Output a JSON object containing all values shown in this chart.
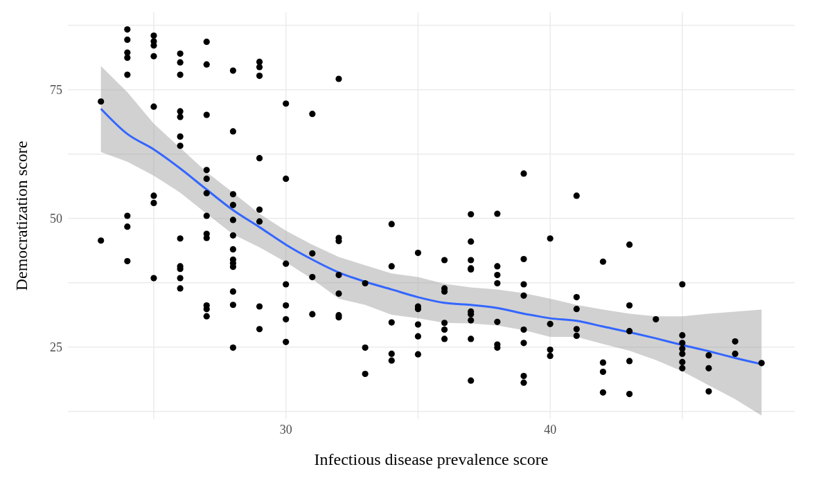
{
  "chart_data": {
    "type": "scatter",
    "xlabel": "Infectious disease prevalence score",
    "ylabel": "Democratization score",
    "xlim": [
      21.75,
      49.25
    ],
    "xticks": [
      {
        "value": 25,
        "label": null
      },
      30,
      {
        "value": 35,
        "label": null
      },
      40,
      {
        "value": 45,
        "label": null
      }
    ],
    "ylim": [
      11,
      90
    ],
    "yticks": [
      {
        "value": 12.5,
        "label": null
      },
      25,
      {
        "value": 37.5,
        "label": null
      },
      50,
      {
        "value": 62.5,
        "label": null
      },
      75,
      {
        "value": 87.5,
        "label": null
      }
    ],
    "grid": true,
    "series": [
      {
        "color": "#000000",
        "marker": "circle",
        "x": [
          23,
          23,
          24,
          24,
          24,
          24,
          24,
          24,
          24,
          24,
          25,
          25,
          25,
          25,
          25,
          25,
          25,
          25,
          26,
          26,
          26,
          26,
          26,
          26,
          26,
          26,
          26,
          26,
          26,
          26,
          27,
          27,
          27,
          27,
          27,
          27,
          27,
          27,
          27,
          27,
          27,
          27,
          28,
          28,
          28,
          28,
          28,
          28,
          28,
          28,
          28,
          28,
          28,
          28,
          28,
          29,
          29,
          29,
          29,
          29,
          29,
          29,
          29,
          30,
          30,
          30,
          30,
          30,
          30,
          30,
          31,
          31,
          31,
          31,
          32,
          32,
          32,
          32,
          32,
          32,
          32,
          33,
          33,
          33,
          34,
          34,
          34,
          34,
          34,
          35,
          35,
          35,
          35,
          35,
          35,
          36,
          36,
          36,
          36,
          36,
          36,
          37,
          37,
          37,
          37,
          37,
          37,
          37,
          37,
          37,
          37,
          38,
          38,
          38,
          38,
          38,
          38,
          38,
          39,
          39,
          39,
          39,
          39,
          39,
          39,
          39,
          40,
          40,
          40,
          40,
          41,
          41,
          41,
          41,
          41,
          42,
          42,
          42,
          42,
          43,
          43,
          43,
          43,
          43,
          44,
          45,
          45,
          45,
          45,
          45,
          45,
          45,
          46,
          46,
          46,
          47,
          47,
          48
        ],
        "values": [
          72.7,
          45.7,
          86.7,
          84.7,
          82.2,
          81.2,
          77.9,
          50.5,
          48.4,
          41.7,
          85.5,
          84.4,
          83.6,
          81.5,
          71.7,
          54.4,
          53.0,
          38.4,
          82.0,
          80.3,
          77.9,
          70.8,
          69.7,
          65.9,
          64.1,
          46.1,
          40.7,
          40.2,
          38.4,
          36.4,
          84.3,
          79.9,
          70.1,
          59.4,
          57.7,
          54.9,
          50.5,
          47.0,
          46.2,
          33.1,
          32.4,
          31.0,
          78.7,
          66.9,
          54.7,
          52.6,
          49.7,
          46.7,
          44.0,
          42.0,
          41.3,
          40.6,
          35.8,
          33.2,
          24.9,
          80.4,
          79.4,
          77.7,
          61.7,
          51.7,
          49.4,
          32.9,
          28.5,
          72.3,
          57.7,
          41.2,
          37.2,
          33.1,
          30.4,
          26.0,
          70.3,
          43.2,
          38.6,
          31.4,
          77.1,
          46.2,
          45.6,
          39.0,
          35.4,
          31.2,
          30.8,
          37.4,
          24.9,
          19.8,
          48.9,
          40.7,
          29.8,
          23.7,
          22.4,
          43.3,
          32.9,
          32.4,
          29.4,
          27.1,
          23.6,
          41.9,
          36.4,
          35.8,
          29.7,
          28.4,
          26.6,
          50.8,
          45.5,
          41.9,
          40.3,
          40.1,
          31.9,
          31.4,
          30.2,
          26.6,
          18.5,
          50.9,
          40.7,
          39.0,
          37.4,
          29.9,
          25.5,
          24.9,
          58.7,
          42.1,
          37.2,
          35.0,
          28.4,
          25.8,
          19.4,
          18.1,
          46.1,
          29.5,
          24.5,
          23.3,
          54.4,
          34.7,
          32.4,
          28.5,
          27.2,
          41.6,
          22.0,
          20.2,
          16.2,
          44.9,
          33.1,
          28.1,
          22.3,
          15.9,
          30.4,
          37.2,
          27.3,
          25.8,
          24.7,
          23.7,
          22.1,
          20.9,
          23.4,
          20.9,
          16.4,
          26.1,
          23.7,
          21.9
        ]
      },
      {
        "type": "line",
        "color": "#3366ff",
        "x": [
          23,
          24,
          25,
          26,
          27,
          28,
          29,
          30,
          31,
          32,
          33,
          34,
          35,
          36,
          37,
          38,
          39,
          40,
          41,
          42,
          43,
          44,
          45,
          46,
          47,
          48
        ],
        "values": [
          71.3,
          66.4,
          63.4,
          59.7,
          55.6,
          51.6,
          48.3,
          44.9,
          42.0,
          39.5,
          37.7,
          36.2,
          34.7,
          33.6,
          33.2,
          32.6,
          31.5,
          30.6,
          30.1,
          29.0,
          27.9,
          26.7,
          25.4,
          24.2,
          22.9,
          21.7
        ],
        "lower": [
          62.9,
          61.0,
          58.3,
          55.0,
          50.9,
          46.9,
          44.4,
          41.5,
          38.2,
          34.4,
          33.2,
          31.3,
          30.6,
          29.7,
          29.6,
          29.2,
          28.3,
          27.0,
          27.0,
          25.6,
          24.3,
          22.5,
          20.3,
          17.6,
          14.9,
          11.7
        ],
        "upper": [
          79.6,
          74.5,
          68.4,
          63.7,
          59.0,
          55.0,
          50.9,
          47.6,
          44.9,
          42.5,
          40.9,
          39.3,
          38.6,
          37.3,
          36.6,
          36.2,
          35.5,
          34.4,
          33.2,
          32.3,
          31.5,
          31.0,
          31.0,
          31.5,
          31.9,
          32.3
        ]
      }
    ]
  }
}
